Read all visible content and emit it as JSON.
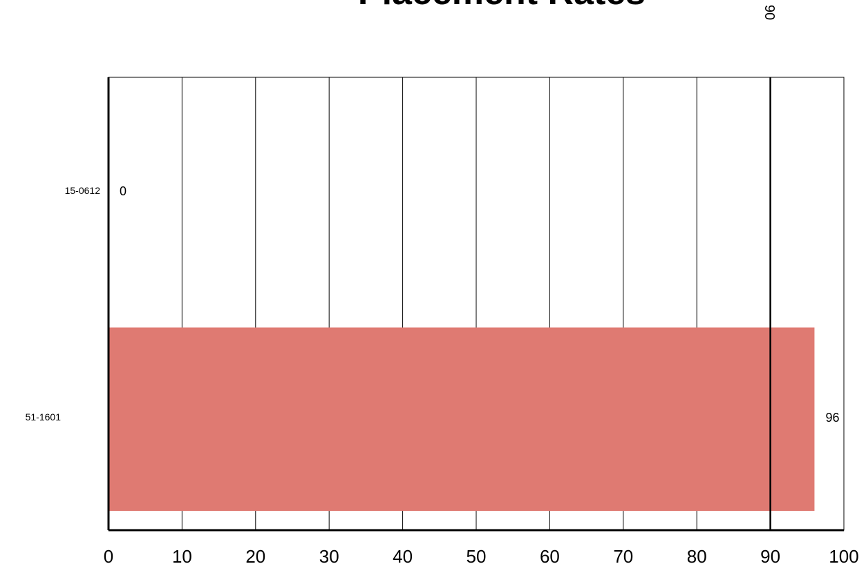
{
  "chart_data": {
    "type": "bar",
    "orientation": "horizontal",
    "title": "Placement Rates",
    "categories": [
      "15-0612",
      "51-1601"
    ],
    "values": [
      0,
      96
    ],
    "data_labels": [
      "0",
      "96"
    ],
    "bar_color": "#df7a72",
    "xlim": [
      0,
      100
    ],
    "x_ticks": [
      "0",
      "10",
      "20",
      "30",
      "40",
      "50",
      "60",
      "70",
      "80",
      "90",
      "100"
    ],
    "grid": "vertical",
    "reference_line": {
      "value": 90,
      "label": "90"
    },
    "xlabel": "",
    "ylabel": ""
  }
}
